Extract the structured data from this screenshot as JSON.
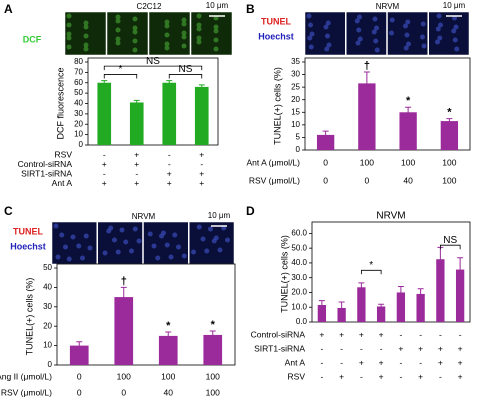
{
  "chart_data": [
    {
      "type": "bar",
      "panel": "A",
      "image_title": "C2C12",
      "scale_bar": "10 μm",
      "image_labels": [
        {
          "text": "DCF",
          "color": "#33cc33"
        }
      ],
      "ylabel": "DCF fluorescence",
      "ylim": [
        0,
        80
      ],
      "yticks": [
        0,
        10,
        20,
        30,
        40,
        50,
        60,
        70,
        80
      ],
      "values": [
        60,
        41,
        60,
        56
      ],
      "errors": [
        2,
        2,
        2,
        2
      ],
      "color": "#22aa22",
      "annotations": [
        "*",
        "NS",
        "NS"
      ],
      "conditions": [
        {
          "label": "RSV",
          "values": [
            "-",
            "+",
            "-",
            "+"
          ]
        },
        {
          "label": "Control-siRNA",
          "values": [
            "+",
            "+",
            "-",
            "-"
          ]
        },
        {
          "label": "SIRT1-siRNA",
          "values": [
            "-",
            "-",
            "+",
            "+"
          ]
        },
        {
          "label": "Ant A",
          "values": [
            "+",
            "+",
            "+",
            "+"
          ]
        }
      ]
    },
    {
      "type": "bar",
      "panel": "B",
      "image_title": "NRVM",
      "scale_bar": "10 μm",
      "image_labels": [
        {
          "text": "TUNEL",
          "color": "#dd2222"
        },
        {
          "text": "Hoechst",
          "color": "#2222bb"
        }
      ],
      "ylabel": "TUNEL(+) cells (%)",
      "ylim": [
        0,
        35
      ],
      "yticks": [
        0,
        5,
        10,
        15,
        20,
        25,
        30,
        35
      ],
      "values": [
        6,
        26.5,
        15,
        11.5
      ],
      "errors": [
        1.5,
        4.5,
        2,
        1
      ],
      "color": "#9b2a9b",
      "bar_markers": [
        null,
        "†",
        "*",
        "*"
      ],
      "conditions": [
        {
          "label": "Ant A (μmol/L)",
          "values": [
            0,
            100,
            100,
            100
          ]
        },
        {
          "label": "RSV (μmol/L)",
          "values": [
            0,
            0,
            40,
            100
          ]
        }
      ]
    },
    {
      "type": "bar",
      "panel": "C",
      "image_title": "NRVM",
      "scale_bar": "10 μm",
      "image_labels": [
        {
          "text": "TUNEL",
          "color": "#dd2222"
        },
        {
          "text": "Hoechst",
          "color": "#2222bb"
        }
      ],
      "ylabel": "TUNEL(+) cells (%)",
      "ylim": [
        0,
        50
      ],
      "yticks": [
        0,
        10,
        20,
        30,
        40,
        50
      ],
      "values": [
        10,
        35,
        15,
        15.5
      ],
      "errors": [
        2,
        5,
        2,
        2
      ],
      "color": "#9b2a9b",
      "bar_markers": [
        null,
        "†",
        "*",
        "*"
      ],
      "conditions": [
        {
          "label": "Ang II (μmol/L)",
          "values": [
            0,
            100,
            100,
            100
          ]
        },
        {
          "label": "RSV (μmol/L)",
          "values": [
            0,
            0,
            40,
            100
          ]
        }
      ]
    },
    {
      "type": "bar",
      "panel": "D",
      "title": "NRVM",
      "ylabel": "TUNEL(+) cells (%)",
      "ylim": [
        0,
        65
      ],
      "yticks": [
        {
          "value": 0,
          "label": "0.0"
        },
        {
          "value": 10,
          "label": "10.0"
        },
        {
          "value": 20,
          "label": "20.0"
        },
        {
          "value": 30,
          "label": "30.0"
        },
        {
          "value": 40,
          "label": "40.0"
        },
        {
          "value": 50,
          "label": "50.0"
        },
        {
          "value": 60,
          "label": "60.0"
        }
      ],
      "values": [
        11.5,
        9.5,
        23.5,
        10.5,
        20,
        19,
        42.5,
        35.5
      ],
      "errors": [
        3,
        4,
        3,
        1.5,
        4,
        3.5,
        8,
        8
      ],
      "color": "#9b2a9b",
      "annotations": [
        "*",
        "NS"
      ],
      "conditions": [
        {
          "label": "Control-siRNA",
          "values": [
            "+",
            "+",
            "+",
            "+",
            "-",
            "-",
            "-",
            "-"
          ]
        },
        {
          "label": "SIRT1-siRNA",
          "values": [
            "-",
            "-",
            "-",
            "-",
            "+",
            "+",
            "+",
            "+"
          ]
        },
        {
          "label": "Ant A",
          "values": [
            "-",
            "-",
            "+",
            "+",
            "-",
            "-",
            "+",
            "+"
          ]
        },
        {
          "label": "RSV",
          "values": [
            "-",
            "+",
            "-",
            "+",
            "-",
            "+",
            "-",
            "+"
          ]
        }
      ]
    }
  ]
}
